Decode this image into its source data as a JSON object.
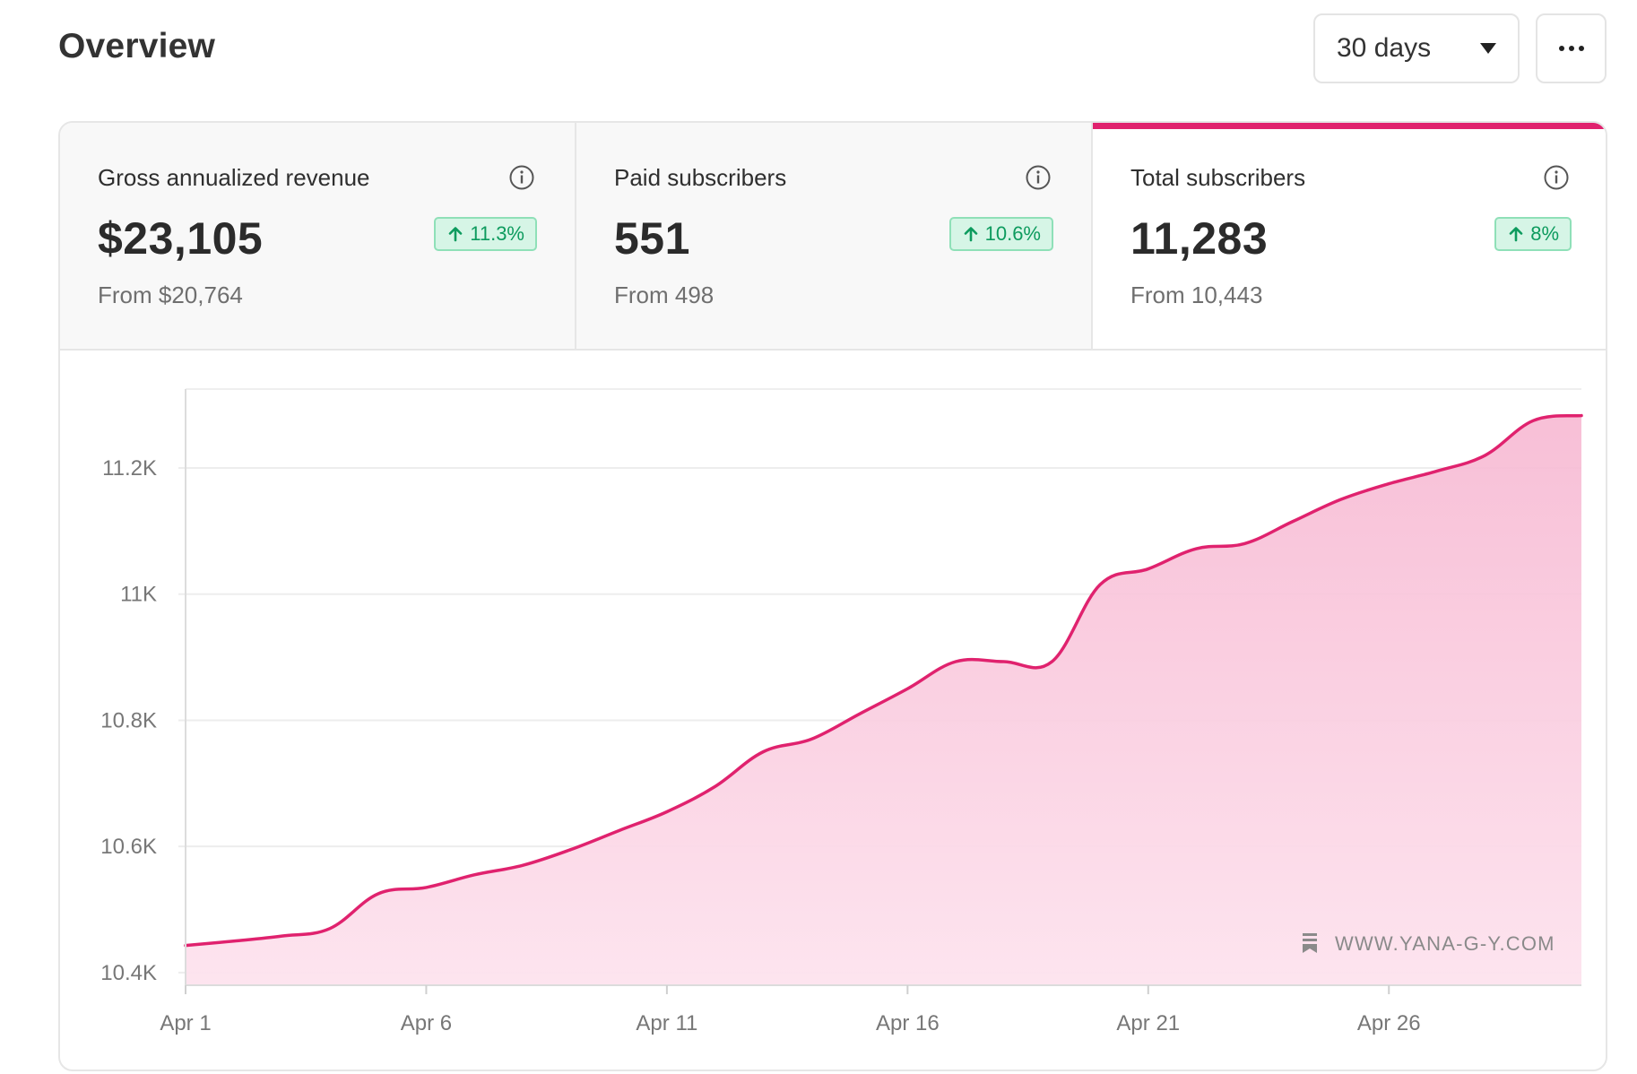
{
  "header": {
    "title": "Overview",
    "range_select": {
      "value": "30 days"
    }
  },
  "metrics": [
    {
      "title": "Gross annualized revenue",
      "value": "$23,105",
      "change": "11.3%",
      "from": "From $20,764",
      "selected": false
    },
    {
      "title": "Paid subscribers",
      "value": "551",
      "change": "10.6%",
      "from": "From 498",
      "selected": false
    },
    {
      "title": "Total subscribers",
      "value": "11,283",
      "change": "8%",
      "from": "From 10,443",
      "selected": true
    }
  ],
  "colors": {
    "accent": "#e0226e",
    "fill_top": "#f7b8d2",
    "fill_bottom": "#fde3ee",
    "badge_green": "#0d9b5e"
  },
  "watermark": "WWW.YANA-G-Y.COM",
  "chart_data": {
    "type": "area",
    "title": "Total subscribers",
    "xlabel": "",
    "ylabel": "",
    "ylim": [
      10380,
      11325
    ],
    "yticks": [
      {
        "value": 10400,
        "label": "10.4K"
      },
      {
        "value": 10600,
        "label": "10.6K"
      },
      {
        "value": 10800,
        "label": "10.8K"
      },
      {
        "value": 11000,
        "label": "11K"
      },
      {
        "value": 11200,
        "label": "11.2K"
      }
    ],
    "xticks": [
      {
        "day": 1,
        "label": "Apr 1"
      },
      {
        "day": 6,
        "label": "Apr 6"
      },
      {
        "day": 11,
        "label": "Apr 11"
      },
      {
        "day": 16,
        "label": "Apr 16"
      },
      {
        "day": 21,
        "label": "Apr 21"
      },
      {
        "day": 26,
        "label": "Apr 26"
      }
    ],
    "x_range": [
      1,
      30
    ],
    "series": [
      {
        "name": "Total subscribers",
        "x": [
          1,
          2,
          3,
          4,
          5,
          6,
          7,
          8,
          9,
          10,
          11,
          12,
          13,
          14,
          15,
          16,
          17,
          18,
          19,
          20,
          21,
          22,
          23,
          24,
          25,
          26,
          27,
          28,
          29,
          30
        ],
        "values": [
          10443,
          10450,
          10458,
          10470,
          10525,
          10535,
          10555,
          10570,
          10595,
          10625,
          10655,
          10695,
          10750,
          10770,
          10810,
          10850,
          10893,
          10893,
          10893,
          11015,
          11040,
          11072,
          11080,
          11115,
          11150,
          11175,
          11195,
          11220,
          11275,
          11283
        ]
      }
    ]
  }
}
